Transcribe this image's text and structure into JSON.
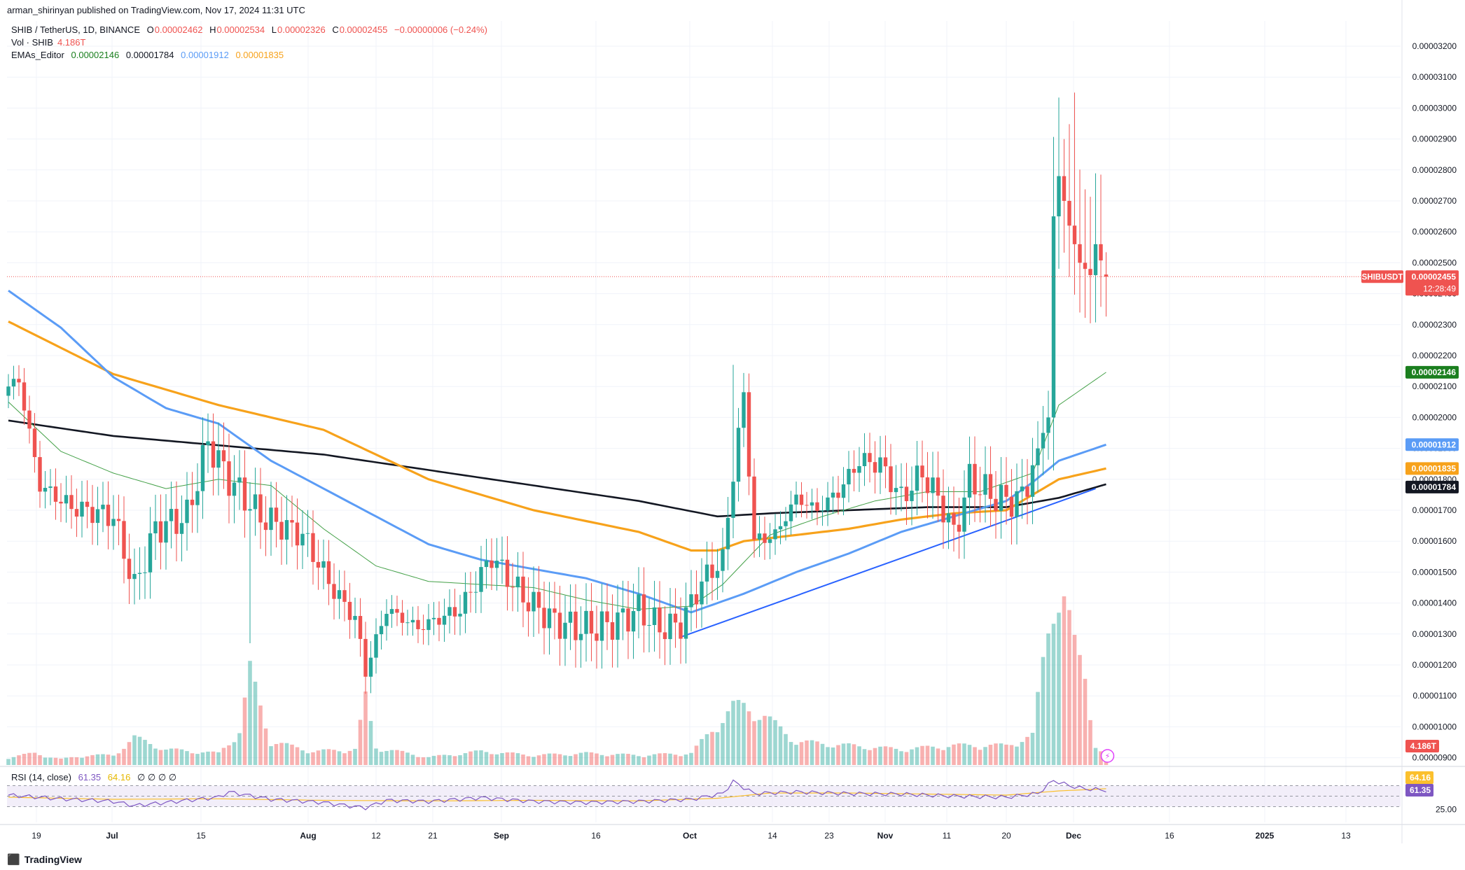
{
  "header": {
    "published": "arman_shirinyan published on TradingView.com, Nov 17, 2024 11:31 UTC",
    "symbol_line": "SHIB / TetherUS, 1D, BINANCE",
    "ohlc": {
      "o_label": "O",
      "o": "0.00002462",
      "h_label": "H",
      "h": "0.00002534",
      "l_label": "L",
      "l": "0.00002326",
      "c_label": "C",
      "c": "0.00002455",
      "change": "−0.00000006 (−0.24%)"
    },
    "vol_label": "Vol · SHIB",
    "vol_value": "4.186T",
    "ema_label": "EMAs_Editor",
    "ema_values": [
      "0.00002146",
      "0.00001784",
      "0.00001912",
      "0.00001835"
    ],
    "rsi_label": "RSI (14, close)",
    "rsi_value": "61.35",
    "rsi_ma_value": "64.16",
    "rsi_extra": "∅ ∅ ∅ ∅"
  },
  "brand": "TradingView",
  "colors": {
    "up": "#26a69a",
    "down": "#ef5350",
    "ema20": "#43a047",
    "ema50": "#5b9cf6",
    "ema100": "#f7a21b",
    "ema200": "#131722",
    "trendline": "#2962ff",
    "rsi": "#7e57c2",
    "rsi_ma": "#fbc02d",
    "rsi_band": "#ede7f6"
  },
  "chart_data": {
    "type": "candlestick",
    "symbol": "SHIBUSDT",
    "y_ticks": [
      "0.00003200",
      "0.00003100",
      "0.00003000",
      "0.00002900",
      "0.00002800",
      "0.00002700",
      "0.00002600",
      "0.00002500",
      "0.00002400",
      "0.00002300",
      "0.00002200",
      "0.00002100",
      "0.00002000",
      "0.00001900",
      "0.00001800",
      "0.00001700",
      "0.00001600",
      "0.00001500",
      "0.00001400",
      "0.00001300",
      "0.00001200",
      "0.00001100",
      "0.00001000",
      "0.00000900"
    ],
    "x_ticks": [
      "19",
      "Jul",
      "15",
      "Aug",
      "12",
      "21",
      "Sep",
      "16",
      "Oct",
      "14",
      "23",
      "Nov",
      "11",
      "20",
      "Dec",
      "16",
      "2025",
      "13"
    ],
    "price_tags": [
      {
        "label": "SHIBUSDT",
        "value": "0.00002455",
        "timer": "12:28:49",
        "color": "#ef5350"
      },
      {
        "value": "0.00002146",
        "color": "#1b7f1f"
      },
      {
        "value": "0.00001912",
        "color": "#5b9cf6"
      },
      {
        "value": "0.00001835",
        "color": "#f7a21b"
      },
      {
        "value": "0.00001784",
        "color": "#131722"
      },
      {
        "value": "4.186T",
        "color": "#ef5350"
      }
    ],
    "close_anchors": [
      [
        0,
        2.1
      ],
      [
        2,
        2.12
      ],
      [
        6,
        1.78
      ],
      [
        12,
        1.71
      ],
      [
        20,
        1.68
      ],
      [
        24,
        1.45
      ],
      [
        28,
        1.64
      ],
      [
        34,
        1.68
      ],
      [
        38,
        1.92
      ],
      [
        42,
        1.8
      ],
      [
        48,
        1.68
      ],
      [
        56,
        1.62
      ],
      [
        62,
        1.44
      ],
      [
        66,
        1.35
      ],
      [
        68,
        1.18
      ],
      [
        72,
        1.38
      ],
      [
        78,
        1.32
      ],
      [
        86,
        1.38
      ],
      [
        92,
        1.55
      ],
      [
        98,
        1.42
      ],
      [
        104,
        1.34
      ],
      [
        108,
        1.32
      ],
      [
        112,
        1.32
      ],
      [
        116,
        1.34
      ],
      [
        120,
        1.38
      ],
      [
        124,
        1.32
      ],
      [
        128,
        1.33
      ],
      [
        132,
        1.47
      ],
      [
        136,
        1.54
      ],
      [
        138,
        1.82
      ],
      [
        140,
        2.07
      ],
      [
        142,
        1.6
      ],
      [
        146,
        1.62
      ],
      [
        150,
        1.74
      ],
      [
        154,
        1.7
      ],
      [
        158,
        1.76
      ],
      [
        162,
        1.86
      ],
      [
        166,
        1.85
      ],
      [
        170,
        1.74
      ],
      [
        174,
        1.82
      ],
      [
        178,
        1.71
      ],
      [
        180,
        1.62
      ],
      [
        183,
        1.8
      ],
      [
        187,
        1.75
      ],
      [
        190,
        1.73
      ],
      [
        193,
        1.74
      ],
      [
        196,
        1.9
      ],
      [
        198,
        2.0
      ],
      [
        199,
        2.65
      ],
      [
        200,
        2.78
      ],
      [
        202,
        2.62
      ],
      [
        204,
        2.5
      ],
      [
        206,
        2.46
      ],
      [
        207,
        2.56
      ],
      [
        209,
        2.455
      ]
    ],
    "ema20": {
      "name": "",
      "values": [
        [
          0,
          2.05
        ],
        [
          10,
          1.89
        ],
        [
          20,
          1.82
        ],
        [
          30,
          1.77
        ],
        [
          40,
          1.8
        ],
        [
          50,
          1.78
        ],
        [
          60,
          1.64
        ],
        [
          70,
          1.52
        ],
        [
          80,
          1.47
        ],
        [
          90,
          1.46
        ],
        [
          100,
          1.45
        ],
        [
          110,
          1.41
        ],
        [
          120,
          1.38
        ],
        [
          130,
          1.39
        ],
        [
          136,
          1.46
        ],
        [
          145,
          1.62
        ],
        [
          155,
          1.68
        ],
        [
          165,
          1.73
        ],
        [
          175,
          1.76
        ],
        [
          185,
          1.76
        ],
        [
          195,
          1.82
        ],
        [
          200,
          2.04
        ],
        [
          209,
          2.146
        ]
      ]
    },
    "ema50": {
      "name": "",
      "values": [
        [
          0,
          2.41
        ],
        [
          10,
          2.29
        ],
        [
          20,
          2.13
        ],
        [
          30,
          2.03
        ],
        [
          40,
          1.98
        ],
        [
          50,
          1.86
        ],
        [
          60,
          1.77
        ],
        [
          70,
          1.68
        ],
        [
          80,
          1.59
        ],
        [
          90,
          1.54
        ],
        [
          100,
          1.51
        ],
        [
          110,
          1.48
        ],
        [
          120,
          1.43
        ],
        [
          130,
          1.37
        ],
        [
          140,
          1.43
        ],
        [
          150,
          1.5
        ],
        [
          160,
          1.56
        ],
        [
          170,
          1.63
        ],
        [
          180,
          1.68
        ],
        [
          190,
          1.73
        ],
        [
          195,
          1.79
        ],
        [
          200,
          1.86
        ],
        [
          209,
          1.912
        ]
      ]
    },
    "ema100": {
      "name": "",
      "values": [
        [
          0,
          2.31
        ],
        [
          20,
          2.14
        ],
        [
          40,
          2.04
        ],
        [
          60,
          1.96
        ],
        [
          70,
          1.88
        ],
        [
          80,
          1.8
        ],
        [
          100,
          1.7
        ],
        [
          120,
          1.63
        ],
        [
          130,
          1.57
        ],
        [
          135,
          1.57
        ],
        [
          140,
          1.6
        ],
        [
          150,
          1.62
        ],
        [
          160,
          1.64
        ],
        [
          170,
          1.67
        ],
        [
          180,
          1.69
        ],
        [
          190,
          1.7
        ],
        [
          195,
          1.75
        ],
        [
          200,
          1.8
        ],
        [
          209,
          1.835
        ]
      ]
    },
    "ema200": {
      "name": "",
      "values": [
        [
          0,
          1.99
        ],
        [
          20,
          1.94
        ],
        [
          40,
          1.91
        ],
        [
          60,
          1.88
        ],
        [
          80,
          1.83
        ],
        [
          100,
          1.78
        ],
        [
          120,
          1.73
        ],
        [
          135,
          1.68
        ],
        [
          145,
          1.69
        ],
        [
          160,
          1.7
        ],
        [
          175,
          1.71
        ],
        [
          190,
          1.71
        ],
        [
          200,
          1.74
        ],
        [
          209,
          1.784
        ]
      ]
    },
    "trendline": {
      "from": [
        128,
        1.29
      ],
      "to": [
        207,
        1.77
      ]
    },
    "volume": {
      "scale_max": 1.0,
      "bars": [
        [
          0,
          0.04
        ],
        [
          5,
          0.06
        ],
        [
          10,
          0.03
        ],
        [
          15,
          0.05
        ],
        [
          20,
          0.05
        ],
        [
          24,
          0.14
        ],
        [
          30,
          0.08
        ],
        [
          40,
          0.06
        ],
        [
          44,
          0.17
        ],
        [
          46,
          0.48
        ],
        [
          50,
          0.12
        ],
        [
          58,
          0.07
        ],
        [
          66,
          0.08
        ],
        [
          68,
          0.34
        ],
        [
          70,
          0.09
        ],
        [
          80,
          0.04
        ],
        [
          90,
          0.07
        ],
        [
          100,
          0.05
        ],
        [
          110,
          0.06
        ],
        [
          120,
          0.05
        ],
        [
          130,
          0.06
        ],
        [
          138,
          0.3
        ],
        [
          140,
          0.3
        ],
        [
          144,
          0.25
        ],
        [
          150,
          0.12
        ],
        [
          160,
          0.1
        ],
        [
          170,
          0.08
        ],
        [
          180,
          0.1
        ],
        [
          190,
          0.1
        ],
        [
          195,
          0.15
        ],
        [
          199,
          0.9
        ],
        [
          201,
          0.85
        ],
        [
          203,
          0.6
        ],
        [
          205,
          0.46
        ],
        [
          207,
          0.1
        ],
        [
          209,
          0.04
        ]
      ]
    },
    "rsi": {
      "ylim": [
        0,
        100
      ],
      "levels": [
        "64.16",
        "61.35",
        "25.00"
      ],
      "band": [
        30,
        70
      ],
      "values": [
        [
          0,
          52
        ],
        [
          10,
          45
        ],
        [
          20,
          40
        ],
        [
          24,
          32
        ],
        [
          30,
          38
        ],
        [
          40,
          48
        ],
        [
          42,
          58
        ],
        [
          50,
          44
        ],
        [
          60,
          38
        ],
        [
          66,
          30
        ],
        [
          68,
          28
        ],
        [
          72,
          42
        ],
        [
          80,
          40
        ],
        [
          90,
          47
        ],
        [
          100,
          40
        ],
        [
          110,
          38
        ],
        [
          120,
          40
        ],
        [
          130,
          44
        ],
        [
          136,
          55
        ],
        [
          138,
          78
        ],
        [
          142,
          55
        ],
        [
          150,
          58
        ],
        [
          160,
          55
        ],
        [
          170,
          54
        ],
        [
          180,
          50
        ],
        [
          190,
          48
        ],
        [
          196,
          55
        ],
        [
          199,
          80
        ],
        [
          202,
          70
        ],
        [
          205,
          64
        ],
        [
          209,
          61.35
        ]
      ],
      "ma": [
        [
          0,
          48
        ],
        [
          20,
          44
        ],
        [
          40,
          45
        ],
        [
          60,
          42
        ],
        [
          80,
          41
        ],
        [
          100,
          42
        ],
        [
          120,
          41
        ],
        [
          135,
          46
        ],
        [
          145,
          56
        ],
        [
          160,
          56
        ],
        [
          175,
          54
        ],
        [
          190,
          52
        ],
        [
          200,
          60
        ],
        [
          209,
          64.16
        ]
      ]
    }
  }
}
